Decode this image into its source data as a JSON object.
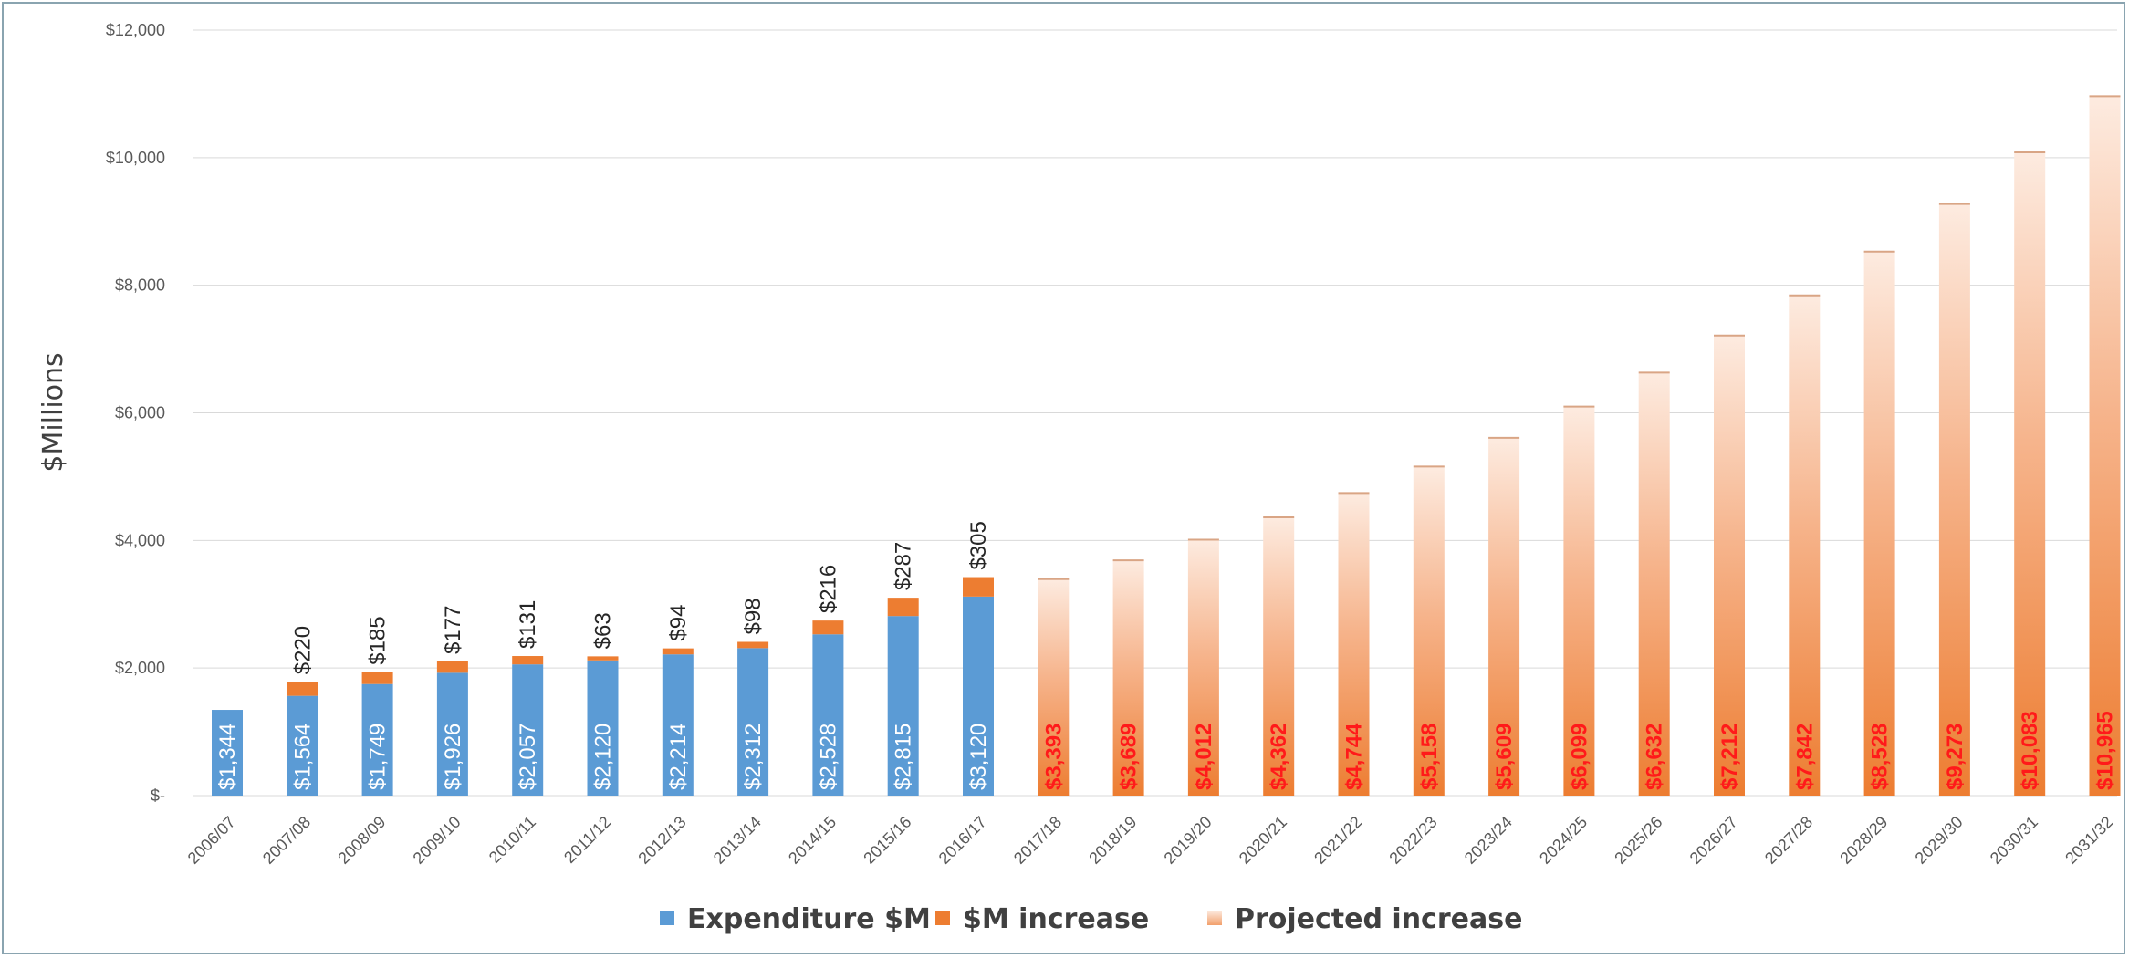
{
  "chart_data": {
    "type": "bar",
    "stacked": true,
    "title": "",
    "xlabel": "",
    "ylabel": "$Millions",
    "ylim": [
      0,
      12000
    ],
    "yticks": [
      0,
      2000,
      4000,
      6000,
      8000,
      10000,
      12000
    ],
    "ytick_labels": [
      "$-",
      "$2,000",
      "$4,000",
      "$6,000",
      "$8,000",
      "$10,000",
      "$12,000"
    ],
    "grid": true,
    "legend_position": "bottom",
    "categories": [
      "2006/07",
      "2007/08",
      "2008/09",
      "2009/10",
      "2010/11",
      "2011/12",
      "2012/13",
      "2013/14",
      "2014/15",
      "2015/16",
      "2016/17",
      "2017/18",
      "2018/19",
      "2019/20",
      "2020/21",
      "2021/22",
      "2022/23",
      "2023/24",
      "2024/25",
      "2025/26",
      "2026/27",
      "2027/28",
      "2028/29",
      "2029/30",
      "2030/31",
      "2031/32"
    ],
    "series": [
      {
        "name": "Expenditure $M",
        "color": "#5b9bd5",
        "values": [
          1344,
          1564,
          1749,
          1926,
          2057,
          2120,
          2214,
          2312,
          2528,
          2815,
          3120,
          null,
          null,
          null,
          null,
          null,
          null,
          null,
          null,
          null,
          null,
          null,
          null,
          null,
          null,
          null
        ],
        "labels": [
          "$1,344",
          "$1,564",
          "$1,749",
          "$1,926",
          "$2,057",
          "$2,120",
          "$2,214",
          "$2,312",
          "$2,528",
          "$2,815",
          "$3,120",
          "",
          "",
          "",
          "",
          "",
          "",
          "",
          "",
          "",
          "",
          "",
          "",
          "",
          "",
          ""
        ]
      },
      {
        "name": "$M increase",
        "color": "#ed7d31",
        "values": [
          null,
          220,
          185,
          177,
          131,
          63,
          94,
          98,
          216,
          287,
          305,
          null,
          null,
          null,
          null,
          null,
          null,
          null,
          null,
          null,
          null,
          null,
          null,
          null,
          null,
          null
        ],
        "labels": [
          "",
          "$220",
          "$185",
          "$177",
          "$131",
          "$63",
          "$94",
          "$98",
          "$216",
          "$287",
          "$305",
          "",
          "",
          "",
          "",
          "",
          "",
          "",
          "",
          "",
          "",
          "",
          "",
          "",
          "",
          ""
        ]
      },
      {
        "name": "Projected increase",
        "color": "#ed7d31",
        "values": [
          null,
          null,
          null,
          null,
          null,
          null,
          null,
          null,
          null,
          null,
          null,
          3393,
          3689,
          4012,
          4362,
          4744,
          5158,
          5609,
          6099,
          6632,
          7212,
          7842,
          8528,
          9273,
          10083,
          10965
        ],
        "labels": [
          "",
          "",
          "",
          "",
          "",
          "",
          "",
          "",
          "",
          "",
          "",
          "$3,393",
          "$3,689",
          "$4,012",
          "$4,362",
          "$4,744",
          "$5,158",
          "$5,609",
          "$6,099",
          "$6,632",
          "$7,212",
          "$7,842",
          "$8,528",
          "$9,273",
          "$10,083",
          "$10,965"
        ]
      }
    ]
  }
}
